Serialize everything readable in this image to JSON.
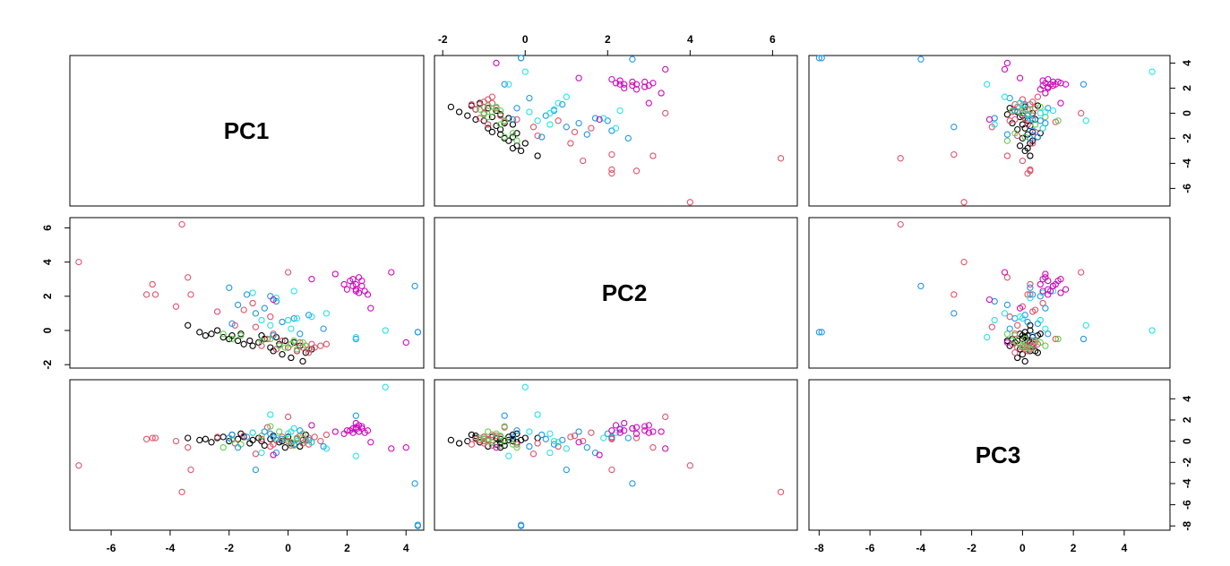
{
  "chart_data": {
    "type": "scatter",
    "subtype": "pairs-matrix",
    "variables": [
      "PC1",
      "PC2",
      "PC3"
    ],
    "ranges": {
      "PC1": [
        -7.4,
        4.6
      ],
      "PC2": [
        -2.2,
        6.6
      ],
      "PC3": [
        -8.4,
        5.8
      ]
    },
    "ticks": {
      "PC1": [
        -6,
        -4,
        -2,
        0,
        2,
        4
      ],
      "PC2": [
        -2,
        0,
        2,
        4,
        6
      ],
      "PC3": [
        -8,
        -6,
        -4,
        -2,
        0,
        2,
        4
      ]
    },
    "tick_labels": {
      "PC1": [
        "-6",
        "-4",
        "-2",
        "0",
        "2",
        "4"
      ],
      "PC2": [
        "-2",
        "0",
        "2",
        "4",
        "6"
      ],
      "PC3": [
        "-8",
        "-6",
        "-4",
        "-2",
        "0",
        "2",
        "4"
      ]
    },
    "colors": [
      "#000000",
      "#df536b",
      "#61d04f",
      "#2297e6",
      "#28e2e5",
      "#cd0bbc"
    ],
    "marker": "open-circle",
    "grid": false,
    "legend": "none",
    "points": [
      [
        -3.4,
        0.3,
        0.3,
        0
      ],
      [
        -3.0,
        -0.1,
        0.1,
        0
      ],
      [
        -2.8,
        -0.3,
        0.2,
        0
      ],
      [
        -2.6,
        -0.2,
        -0.1,
        0
      ],
      [
        -2.4,
        0.0,
        0.3,
        0
      ],
      [
        -2.2,
        -0.4,
        0.4,
        0
      ],
      [
        -2.0,
        -0.5,
        0.0,
        0
      ],
      [
        -1.9,
        -0.3,
        0.6,
        0
      ],
      [
        -1.7,
        -0.6,
        0.2,
        0
      ],
      [
        -1.5,
        -0.8,
        0.4,
        0
      ],
      [
        -1.3,
        -0.6,
        -0.2,
        0
      ],
      [
        -1.2,
        -0.9,
        0.1,
        0
      ],
      [
        -1.0,
        -0.7,
        0.3,
        0
      ],
      [
        -0.8,
        -0.5,
        -0.4,
        0
      ],
      [
        -0.6,
        -1.0,
        0.2,
        0
      ],
      [
        -0.5,
        -1.2,
        0.5,
        0
      ],
      [
        -0.3,
        -0.8,
        -0.1,
        0
      ],
      [
        -0.2,
        -1.4,
        0.0,
        0
      ],
      [
        0.0,
        -1.0,
        0.4,
        0
      ],
      [
        0.1,
        -1.6,
        -0.2,
        0
      ],
      [
        0.3,
        -1.2,
        0.3,
        0
      ],
      [
        0.4,
        -0.9,
        -0.5,
        0
      ],
      [
        0.5,
        -1.8,
        0.1,
        0
      ],
      [
        0.6,
        -1.3,
        0.6,
        0
      ],
      [
        0.2,
        -0.7,
        -0.3,
        0
      ],
      [
        -0.4,
        -0.4,
        0.1,
        0
      ],
      [
        -1.6,
        -0.2,
        0.7,
        0
      ],
      [
        -0.9,
        -0.3,
        0.0,
        0
      ],
      [
        0.8,
        -1.1,
        -0.1,
        0
      ],
      [
        -0.1,
        -0.6,
        -0.6,
        0
      ],
      [
        -7.1,
        4.0,
        -2.3,
        1
      ],
      [
        -4.8,
        2.1,
        0.2,
        1
      ],
      [
        -4.6,
        2.7,
        0.3,
        1
      ],
      [
        -4.5,
        2.1,
        0.3,
        1
      ],
      [
        -3.8,
        1.4,
        0.0,
        1
      ],
      [
        -3.6,
        6.2,
        -4.8,
        1
      ],
      [
        -3.4,
        3.1,
        -0.6,
        1
      ],
      [
        -3.3,
        2.1,
        -2.7,
        1
      ],
      [
        -2.4,
        1.1,
        0.4,
        1
      ],
      [
        -1.8,
        0.3,
        -0.2,
        1
      ],
      [
        -1.5,
        1.2,
        0.5,
        1
      ],
      [
        -1.2,
        1.6,
        0.8,
        1
      ],
      [
        -0.9,
        -0.9,
        0.2,
        1
      ],
      [
        -0.7,
        -0.5,
        1.3,
        1
      ],
      [
        -0.5,
        -0.2,
        -0.3,
        1
      ],
      [
        -0.4,
        -1.1,
        0.1,
        1
      ],
      [
        -0.2,
        -0.6,
        0.4,
        1
      ],
      [
        0.0,
        -1.0,
        0.0,
        1
      ],
      [
        0.1,
        -0.8,
        -0.4,
        1
      ],
      [
        0.3,
        -1.2,
        0.2,
        1
      ],
      [
        0.4,
        -0.7,
        0.5,
        1
      ],
      [
        0.5,
        -1.0,
        -0.2,
        1
      ],
      [
        0.6,
        -0.9,
        0.1,
        1
      ],
      [
        0.7,
        -1.1,
        0.3,
        1
      ],
      [
        0.8,
        -0.8,
        -0.1,
        1
      ],
      [
        0.9,
        -1.0,
        0.4,
        1
      ],
      [
        1.1,
        -0.9,
        0.0,
        1
      ],
      [
        0.7,
        -1.3,
        -0.3,
        1
      ],
      [
        0.0,
        3.4,
        2.3,
        1
      ],
      [
        -0.6,
        0.8,
        -0.5,
        1
      ],
      [
        -1.1,
        0.2,
        -1.2,
        1
      ],
      [
        1.3,
        -0.8,
        0.6,
        1
      ],
      [
        -2.2,
        -0.2,
        -0.6,
        2
      ],
      [
        -1.9,
        -0.5,
        0.1,
        2
      ],
      [
        -1.6,
        -0.3,
        -0.3,
        2
      ],
      [
        -0.9,
        -0.6,
        0.5,
        2
      ],
      [
        -0.3,
        -0.9,
        0.9,
        2
      ],
      [
        0.1,
        -0.8,
        -0.1,
        2
      ],
      [
        0.3,
        -1.1,
        0.3,
        2
      ],
      [
        0.5,
        -0.7,
        0.7,
        2
      ],
      [
        -0.1,
        -1.0,
        0.2,
        2
      ],
      [
        0.2,
        -0.6,
        -0.4,
        2
      ],
      [
        0.6,
        -0.9,
        0.0,
        2
      ],
      [
        -0.6,
        -0.5,
        1.4,
        2
      ],
      [
        -2.0,
        2.5,
        0.3,
        3
      ],
      [
        -1.7,
        1.5,
        -0.6,
        3
      ],
      [
        -1.4,
        2.1,
        0.4,
        3
      ],
      [
        -1.1,
        1.0,
        -2.7,
        3
      ],
      [
        -0.8,
        1.3,
        0.9,
        3
      ],
      [
        -0.5,
        -0.3,
        0.4,
        3
      ],
      [
        -0.4,
        1.7,
        -1.1,
        3
      ],
      [
        -0.2,
        0.5,
        0.2,
        3
      ],
      [
        0.2,
        0.7,
        -0.3,
        3
      ],
      [
        0.4,
        -0.2,
        1.0,
        3
      ],
      [
        0.7,
        0.9,
        0.1,
        3
      ],
      [
        1.2,
        0.1,
        -0.5,
        3
      ],
      [
        2.3,
        -0.5,
        2.4,
        3
      ],
      [
        4.3,
        2.6,
        -4.0,
        3
      ],
      [
        4.4,
        -0.1,
        -7.9,
        3
      ],
      [
        4.4,
        -0.1,
        -8.0,
        3
      ],
      [
        -1.9,
        0.4,
        0.6,
        3
      ],
      [
        -0.6,
        2.0,
        0.7,
        3
      ],
      [
        -1.2,
        2.2,
        0.8,
        4
      ],
      [
        -0.9,
        0.6,
        -1.1,
        4
      ],
      [
        -0.6,
        0.3,
        2.5,
        4
      ],
      [
        -0.4,
        1.9,
        0.3,
        4
      ],
      [
        0.0,
        0.6,
        0.7,
        4
      ],
      [
        0.2,
        2.3,
        1.2,
        4
      ],
      [
        0.3,
        0.7,
        0.0,
        4
      ],
      [
        0.8,
        0.8,
        -0.1,
        4
      ],
      [
        1.3,
        1.0,
        -0.7,
        4
      ],
      [
        3.3,
        0.0,
        5.1,
        4
      ],
      [
        0.1,
        0.1,
        0.9,
        4
      ],
      [
        2.3,
        -0.4,
        -1.4,
        4
      ],
      [
        1.6,
        3.3,
        0.9,
        5
      ],
      [
        1.9,
        2.7,
        0.7,
        5
      ],
      [
        2.0,
        2.4,
        1.0,
        5
      ],
      [
        2.1,
        2.9,
        1.0,
        5
      ],
      [
        2.2,
        2.6,
        1.2,
        5
      ],
      [
        2.2,
        3.0,
        0.8,
        5
      ],
      [
        2.3,
        2.3,
        1.1,
        5
      ],
      [
        2.3,
        2.7,
        1.3,
        5
      ],
      [
        2.4,
        2.2,
        1.5,
        5
      ],
      [
        2.4,
        3.1,
        0.9,
        5
      ],
      [
        2.5,
        2.6,
        1.2,
        5
      ],
      [
        2.5,
        2.9,
        1.4,
        5
      ],
      [
        2.6,
        2.3,
        0.8,
        5
      ],
      [
        2.7,
        2.1,
        1.0,
        5
      ],
      [
        2.8,
        1.3,
        -0.1,
        5
      ],
      [
        3.5,
        3.4,
        -0.7,
        5
      ],
      [
        4.0,
        -0.7,
        -0.6,
        5
      ],
      [
        -0.5,
        1.8,
        -1.3,
        5
      ],
      [
        0.8,
        3.0,
        1.5,
        5
      ],
      [
        2.3,
        2.4,
        1.7,
        5
      ]
    ]
  }
}
